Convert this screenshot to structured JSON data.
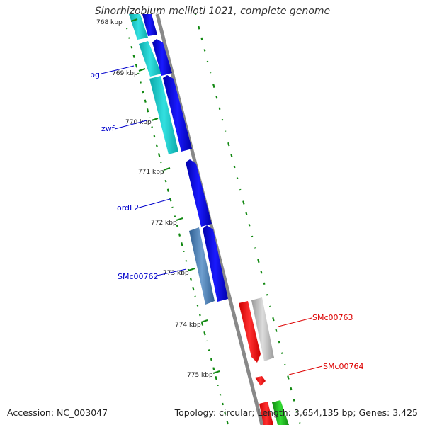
{
  "title": "Sinorhizobium meliloti 1021, complete genome",
  "footer": {
    "accession": "Accession: NC_003047",
    "summary": "Topology: circular; Length: 3,654,135 bp; Genes: 3,425"
  },
  "ticks": [
    "768 kbp",
    "769 kbp",
    "770 kbp",
    "771 kbp",
    "772 kbp",
    "773 kbp",
    "774 kbp",
    "775 kbp"
  ],
  "gene_labels": [
    {
      "text": "pgl",
      "color": "#0000cc"
    },
    {
      "text": "zwf",
      "color": "#0000cc"
    },
    {
      "text": "ordL2",
      "color": "#0000cc"
    },
    {
      "text": "SMc00762",
      "color": "#0000cc"
    },
    {
      "text": "SMc00763",
      "color": "#dd0000"
    },
    {
      "text": "SMc00764",
      "color": "#dd0000"
    }
  ],
  "colors": {
    "forward_cds": "#0000ee",
    "forward_feature": "#11cccc",
    "forward_feature_alt": "#4477aa",
    "reverse_cds": "#ff0000",
    "reverse_feature": "#bbbbbb",
    "gc_skew": "#118811",
    "backbone": "#888888"
  }
}
